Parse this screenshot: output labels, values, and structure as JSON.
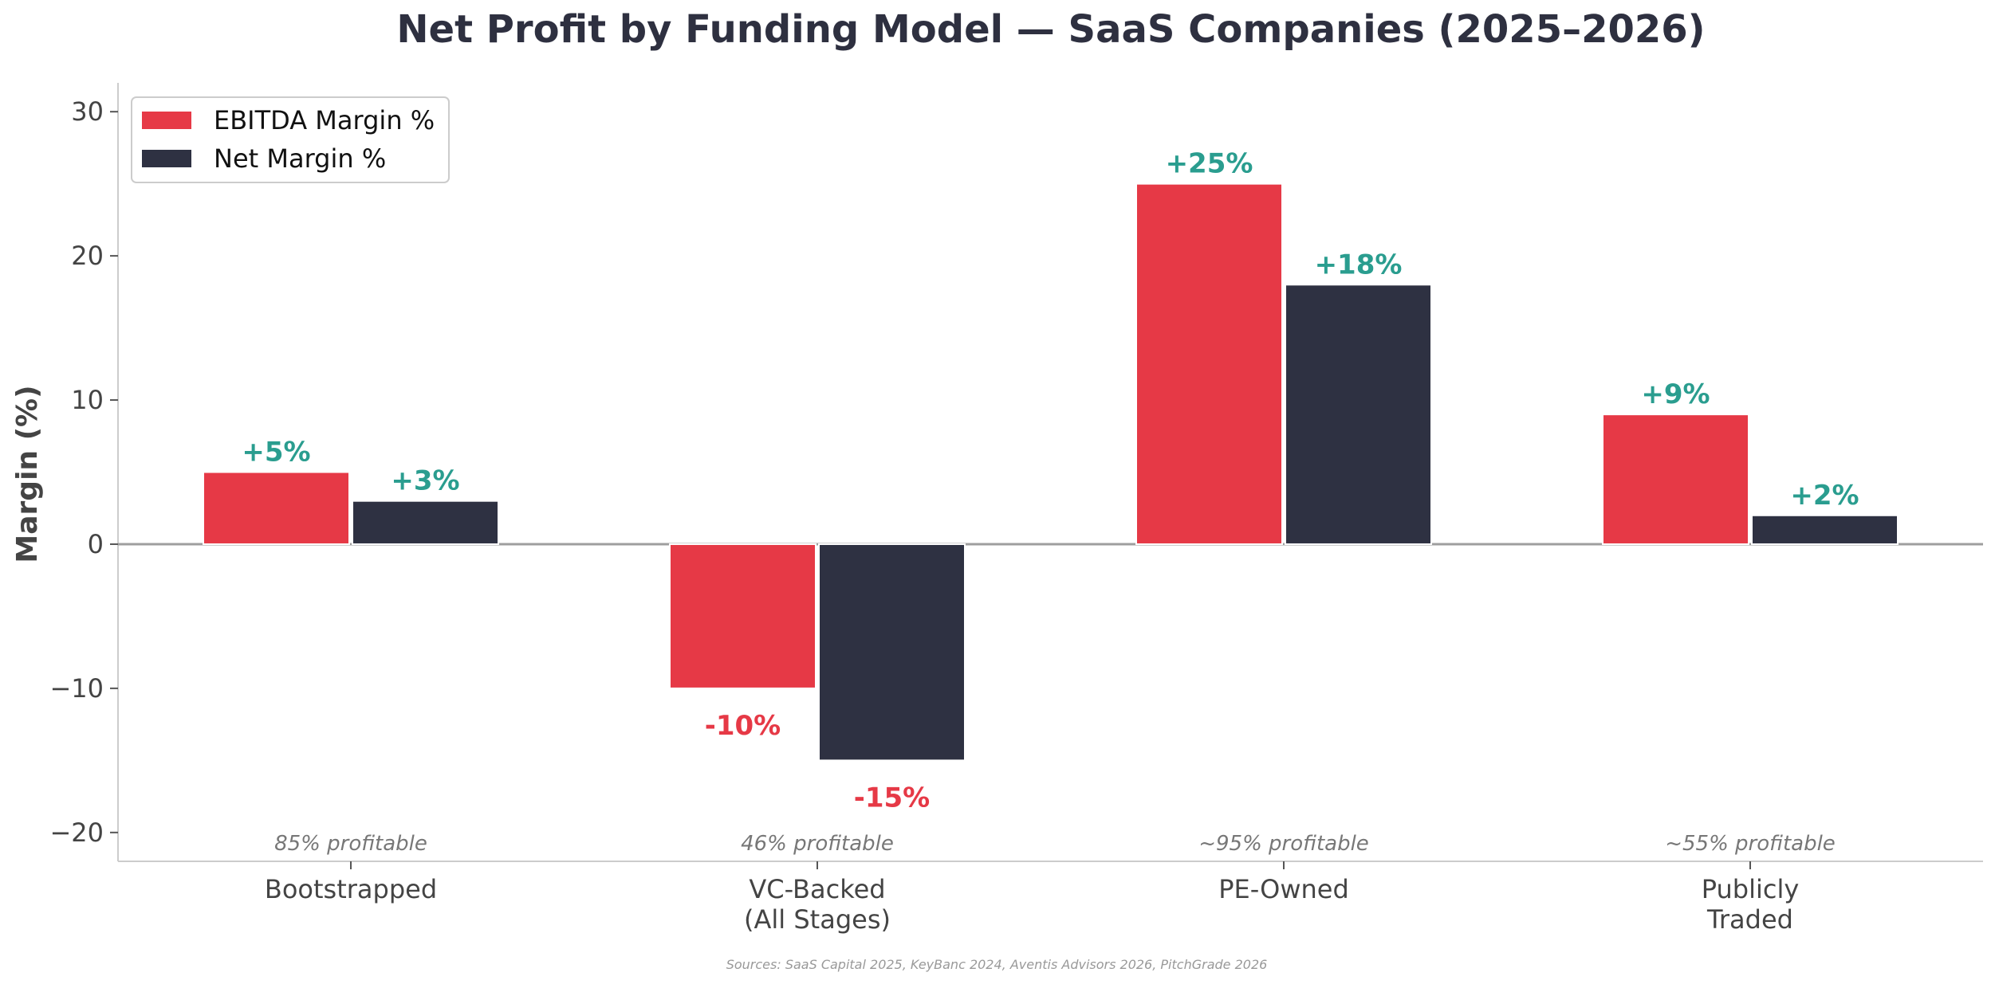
{
  "chart_data": {
    "type": "bar",
    "title": "Net Profit by Funding Model — SaaS Companies (2025–2026)",
    "xlabel": "",
    "ylabel": "Margin (%)",
    "ylim": [
      -22,
      32
    ],
    "yticks": [
      -20,
      -10,
      0,
      10,
      20,
      30
    ],
    "ytick_labels": [
      "−20",
      "−10",
      "0",
      "10",
      "20",
      "30"
    ],
    "categories": [
      "Bootstrapped",
      "VC-Backed\n(All Stages)",
      "PE-Owned",
      "Publicly\nTraded"
    ],
    "series": [
      {
        "name": "EBITDA Margin %",
        "color": "#e63946",
        "values": [
          5,
          -10,
          25,
          9
        ],
        "labels": [
          "+5%",
          "-10%",
          "+25%",
          "+9%"
        ]
      },
      {
        "name": "Net Margin %",
        "color": "#2e3142",
        "values": [
          3,
          -15,
          18,
          2
        ],
        "labels": [
          "+3%",
          "-15%",
          "+18%",
          "+2%"
        ]
      }
    ],
    "notes": [
      "85% profitable",
      "46% profitable",
      "~95% profitable",
      "~55% profitable"
    ],
    "positive_label_color": "#2a9d8f",
    "negative_label_color": "#e63946",
    "zero_line_color": "#9e9e9e",
    "legend_position": "top-left",
    "grid": false,
    "source": "Sources: SaaS Capital 2025, KeyBanc 2024, Aventis Advisors 2026, PitchGrade 2026"
  }
}
